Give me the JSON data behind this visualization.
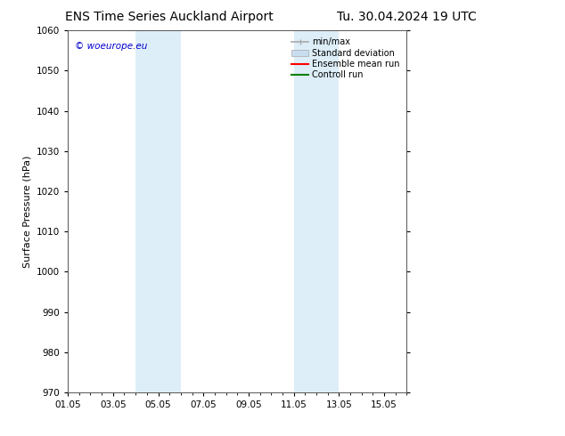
{
  "title_left": "ENS Time Series Auckland Airport",
  "title_right": "Tu. 30.04.2024 19 UTC",
  "ylabel": "Surface Pressure (hPa)",
  "ylim": [
    970,
    1060
  ],
  "yticks": [
    970,
    980,
    990,
    1000,
    1010,
    1020,
    1030,
    1040,
    1050,
    1060
  ],
  "xlim_start": 0,
  "xlim_end": 15,
  "xtick_labels": [
    "01.05",
    "03.05",
    "05.05",
    "07.05",
    "09.05",
    "11.05",
    "13.05",
    "15.05"
  ],
  "xtick_positions": [
    0,
    2,
    4,
    6,
    8,
    10,
    12,
    14
  ],
  "shaded_bands": [
    {
      "x_start": 3.0,
      "x_end": 5.0,
      "color": "#ddeef8"
    },
    {
      "x_start": 10.0,
      "x_end": 12.0,
      "color": "#ddeef8"
    }
  ],
  "watermark_text": "© woeurope.eu",
  "watermark_color": "#0000cc",
  "background_color": "#ffffff",
  "legend_items": [
    {
      "label": "min/max",
      "color": "#aaaaaa",
      "lw": 1.2,
      "style": "minmax"
    },
    {
      "label": "Standard deviation",
      "color": "#c8ddf0",
      "lw": 6,
      "style": "band"
    },
    {
      "label": "Ensemble mean run",
      "color": "#ff0000",
      "lw": 1.5,
      "style": "line"
    },
    {
      "label": "Controll run",
      "color": "#008000",
      "lw": 1.5,
      "style": "line"
    }
  ],
  "grid_color": "#cccccc",
  "title_fontsize": 10,
  "axis_fontsize": 8,
  "tick_fontsize": 7.5
}
